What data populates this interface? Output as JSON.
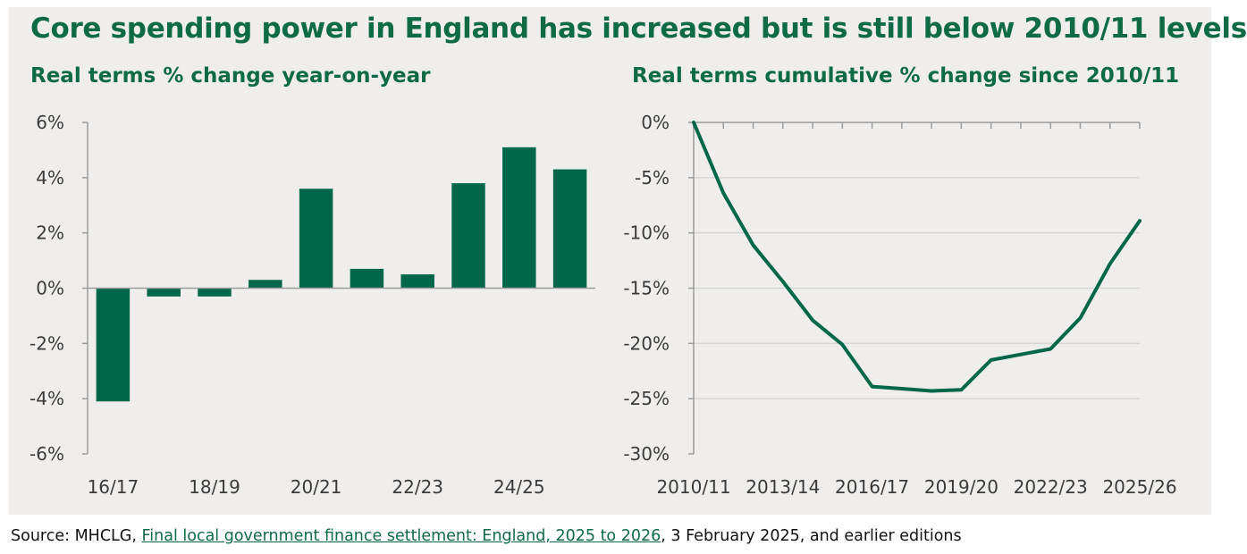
{
  "heading": "Core spending power in England has increased but is still below 2010/11 levels",
  "colors": {
    "green": "#006848",
    "title": "#0f6b45",
    "grid": "#d6d6d6",
    "axis": "#9c9c9c",
    "panel": "#efeeec"
  },
  "chart_data": [
    {
      "type": "bar",
      "title": "Real terms % change year-on-year",
      "categories": [
        "16/17",
        "17/18",
        "18/19",
        "19/20",
        "20/21",
        "21/22",
        "22/23",
        "23/24",
        "24/25",
        "25/26"
      ],
      "tick_labels_shown": [
        "16/17",
        "18/19",
        "20/21",
        "22/23",
        "24/25"
      ],
      "values": [
        -4.1,
        -0.3,
        -0.3,
        0.3,
        3.6,
        0.7,
        0.5,
        3.8,
        5.1,
        4.3
      ],
      "ylim": [
        -6,
        6
      ],
      "yticks": [
        6,
        4,
        2,
        0,
        -2,
        -4,
        -6
      ],
      "ytick_labels": [
        "6%",
        "4%",
        "2%",
        "0%",
        "-2%",
        "-4%",
        "-6%"
      ],
      "xlabel": "",
      "ylabel": ""
    },
    {
      "type": "line",
      "title": "Real terms cumulative % change since 2010/11",
      "x": [
        "2010/11",
        "2011/12",
        "2012/13",
        "2013/14",
        "2014/15",
        "2015/16",
        "2016/17",
        "2017/18",
        "2018/19",
        "2019/20",
        "2020/21",
        "2021/22",
        "2022/23",
        "2023/24",
        "2024/25",
        "2025/26"
      ],
      "tick_labels_shown": [
        "2010/11",
        "2013/14",
        "2016/17",
        "2019/20",
        "2022/23",
        "2025/26"
      ],
      "values": [
        0,
        -6.4,
        -11.1,
        -14.4,
        -17.9,
        -20.1,
        -23.9,
        -24.1,
        -24.3,
        -24.2,
        -21.5,
        -21.0,
        -20.5,
        -17.7,
        -12.8,
        -8.9
      ],
      "ylim": [
        -30,
        0
      ],
      "yticks": [
        0,
        -5,
        -10,
        -15,
        -20,
        -25,
        -30
      ],
      "ytick_labels": [
        "0%",
        "-5%",
        "-10%",
        "-15%",
        "-20%",
        "-25%",
        "-30%"
      ],
      "xlabel": "",
      "ylabel": ""
    }
  ],
  "source": {
    "prefix": "Source: MHCLG, ",
    "link_text": "Final local government finance settlement: England, 2025 to 2026",
    "suffix": ", 3 February 2025, and earlier editions"
  }
}
